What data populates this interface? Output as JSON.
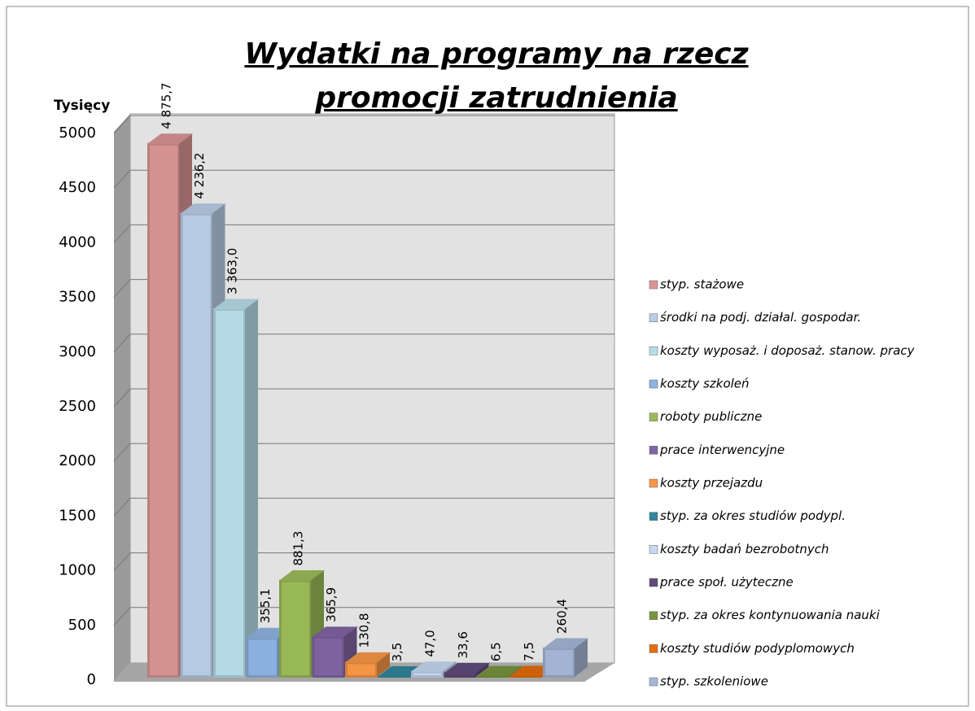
{
  "chart_data": {
    "type": "bar3d",
    "title": "Wydatki na programy na rzecz promocji zatrudnienia",
    "ylabel": "Tysięcy",
    "categories": [
      "styp. stażowe",
      "środki na podj. działal. gospodar.",
      "koszty wyposaż. i doposaż. stanow. pracy",
      "koszty szkoleń",
      "roboty publiczne",
      "prace interwencyjne",
      "koszty przejazdu",
      "styp. za okres studiów podypl.",
      "koszty badań bezrobotnych",
      "prace społ. użyteczne",
      "styp. za okres kontynuowania nauki",
      "koszty studiów podyplomowych",
      "styp. szkoleniowe"
    ],
    "values": [
      4875.7,
      4236.2,
      3363.0,
      355.1,
      881.3,
      365.9,
      130.8,
      3.5,
      47.0,
      33.6,
      6.5,
      7.5,
      260.4
    ],
    "value_labels": [
      "4 875,7",
      "4 236,2",
      "3 363,0",
      "355,1",
      "881,3",
      "365,9",
      "130,8",
      "3,5",
      "47,0",
      "33,6",
      "6,5",
      "7,5",
      "260,4"
    ],
    "colors": [
      "#d99594",
      "#b9cde5",
      "#b7dde8",
      "#8db3e2",
      "#9bbb59",
      "#8064a2",
      "#f79646",
      "#31859c",
      "#c6d9f1",
      "#604a7b",
      "#77933c",
      "#e46c0a",
      "#a5b6d6"
    ],
    "ylim": [
      0,
      5000
    ],
    "yticks": [
      0,
      500,
      1000,
      1500,
      2000,
      2500,
      3000,
      3500,
      4000,
      4500,
      5000
    ],
    "grid": true
  }
}
